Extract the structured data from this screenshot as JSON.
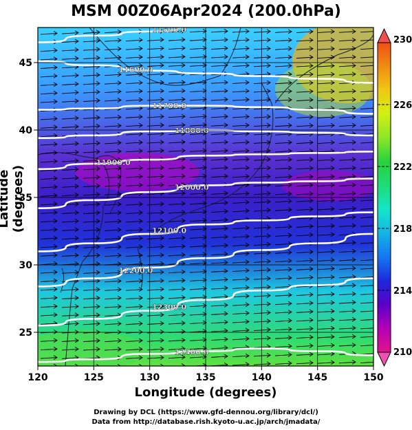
{
  "title": "MSM 00Z06Apr2024 (200.0hPa)",
  "axes": {
    "xlabel": "Longitude (degrees)",
    "ylabel": "Latitude  (degrees)",
    "x_ticks": [
      "120",
      "125",
      "130",
      "135",
      "140",
      "145",
      "150"
    ],
    "y_ticks": [
      "25",
      "30",
      "35",
      "40",
      "45"
    ],
    "xlim": [
      120,
      150
    ],
    "ylim": [
      22.5,
      47.6
    ]
  },
  "colorbar": {
    "min": 210,
    "max": 230,
    "ticks": [
      "230",
      "226",
      "222",
      "218",
      "214",
      "210"
    ],
    "colors": [
      "#e0148c",
      "#b400b4",
      "#5a00c8",
      "#1e28dc",
      "#1478f0",
      "#14b4e6",
      "#14e6c8",
      "#1edc78",
      "#28d23c",
      "#8ce628",
      "#d2f014",
      "#f0c814",
      "#f08c14",
      "#f05014"
    ]
  },
  "contours": [
    {
      "label": "11500.0",
      "lat": [
        46.5,
        47.0,
        47.3,
        47.7,
        48.0,
        48.2,
        48.3
      ]
    },
    {
      "label": "11600.0",
      "lat": [
        45.1,
        44.8,
        44.4,
        44.2,
        44.0,
        43.8,
        43.5
      ]
    },
    {
      "label": "11700.0",
      "lat": [
        41.5,
        41.6,
        41.8,
        41.8,
        41.7,
        41.5,
        41.2
      ]
    },
    {
      "label": "11800.0",
      "lat": [
        39.4,
        39.6,
        39.9,
        40.0,
        39.9,
        39.8,
        39.6
      ]
    },
    {
      "label": "11900.0",
      "lat": [
        37.1,
        37.5,
        37.8,
        38.1,
        38.2,
        38.3,
        38.4
      ]
    },
    {
      "label": "12000.0",
      "lat": [
        34.2,
        34.8,
        35.4,
        35.9,
        36.1,
        36.2,
        36.4
      ]
    },
    {
      "label": "12100.0",
      "lat": [
        31.0,
        31.6,
        32.3,
        33.0,
        33.3,
        33.6,
        33.9
      ]
    },
    {
      "label": "12200.0",
      "lat": [
        28.4,
        29.0,
        29.8,
        30.5,
        31.1,
        31.6,
        32.3
      ]
    },
    {
      "label": "12300.0",
      "lat": [
        25.5,
        26.0,
        26.6,
        27.4,
        28.1,
        28.5,
        29.0
      ]
    },
    {
      "label": "12400.0",
      "lat": [
        22.8,
        23.0,
        23.4,
        23.6,
        23.8,
        23.6,
        23.3
      ]
    }
  ],
  "credits": {
    "line1": "Drawing by DCL (https://www.gfd-dennou.org/library/dcl/)",
    "line2": "Data from http://database.rish.kyoto-u.ac.jp/arch/jmadata/"
  }
}
